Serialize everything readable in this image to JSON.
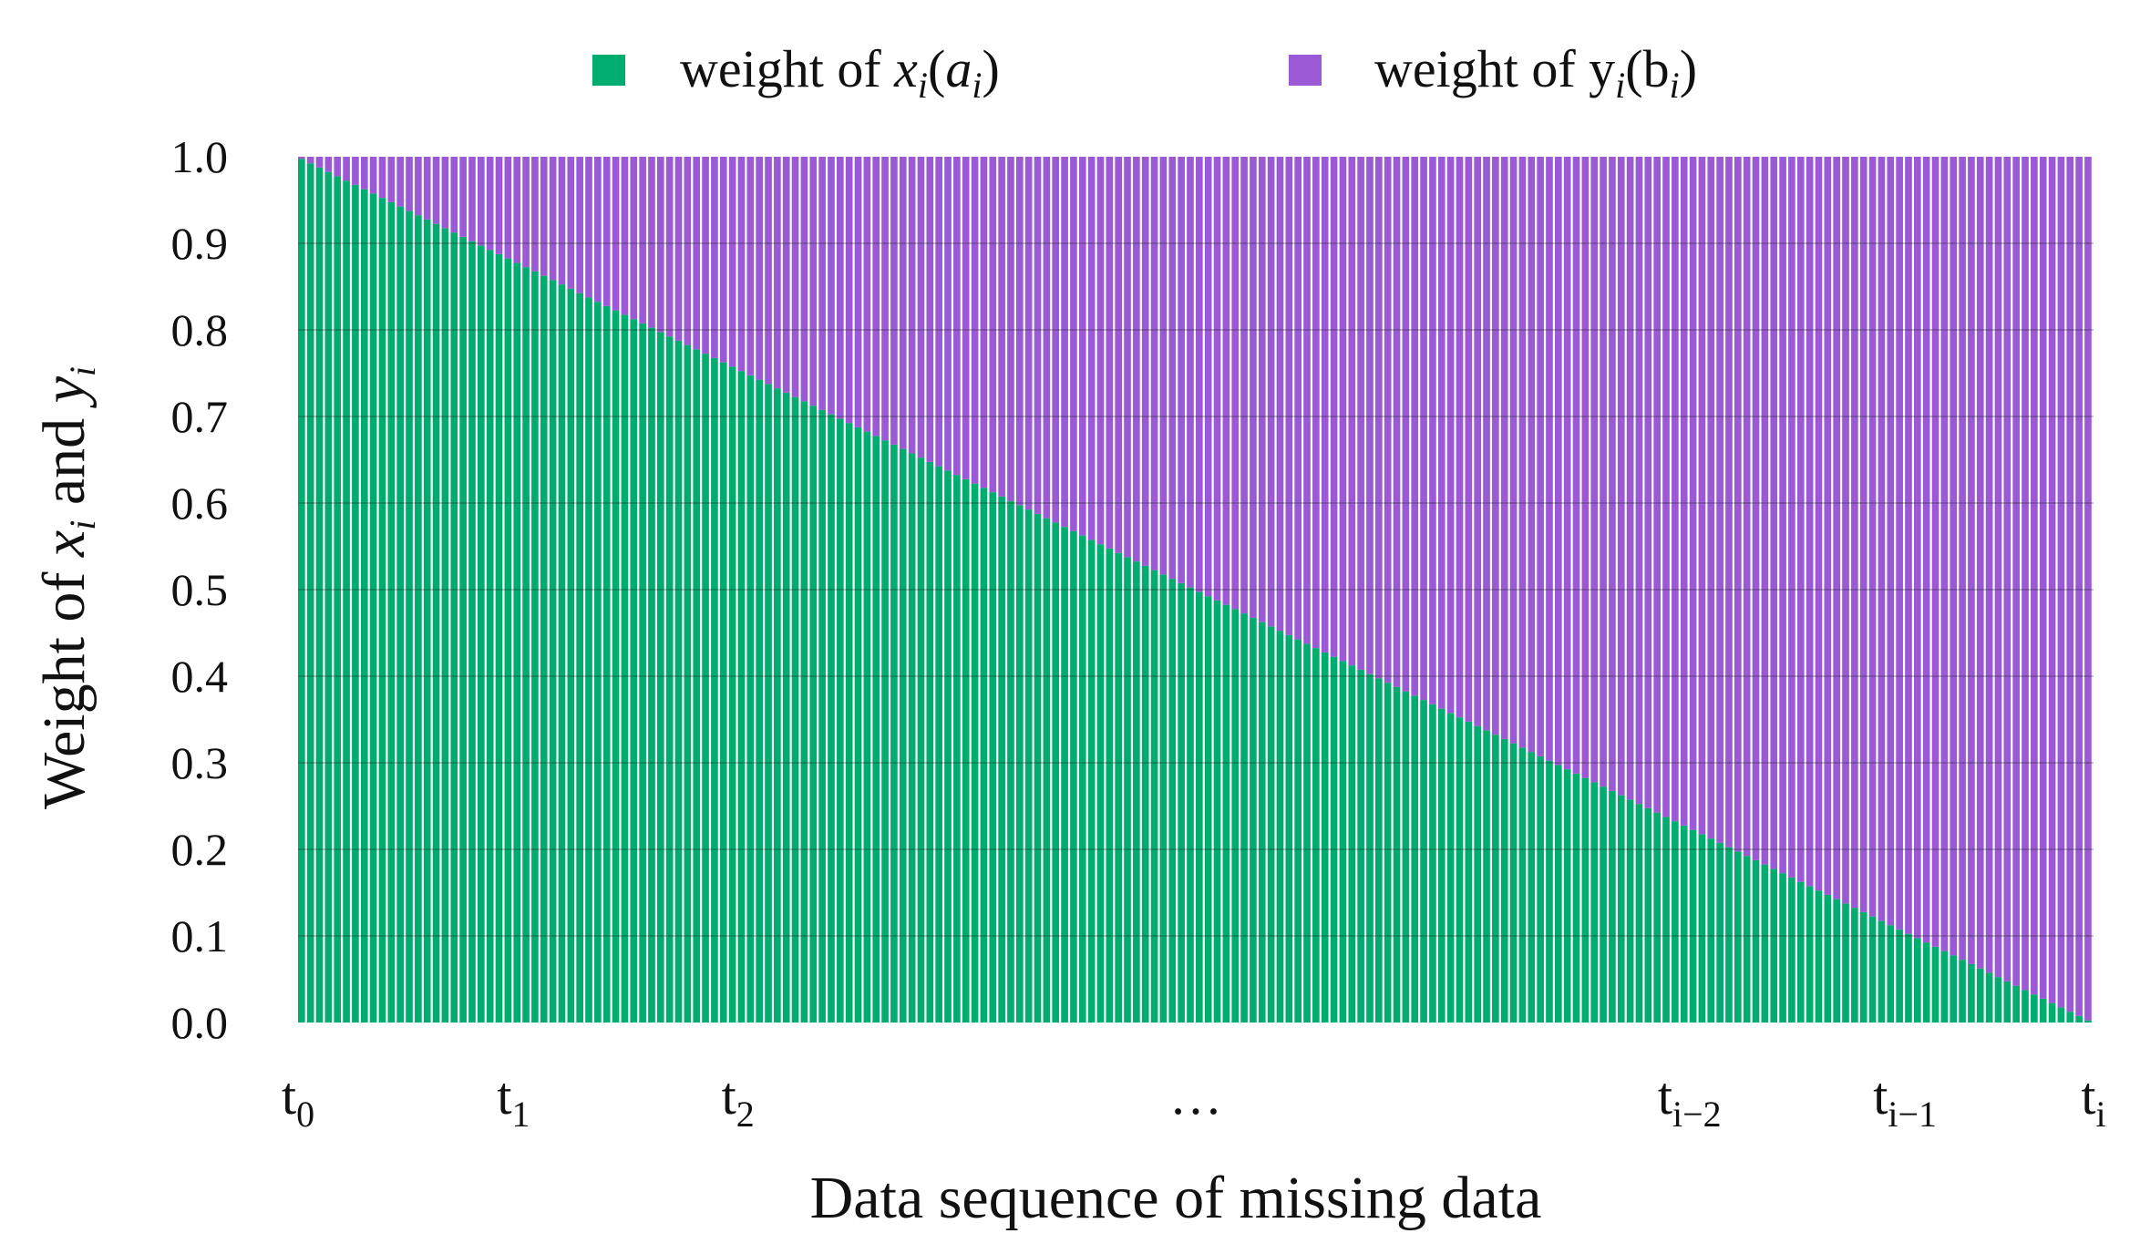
{
  "chart_data": {
    "type": "bar",
    "stacked": true,
    "bar_count": 200,
    "x_range": [
      0,
      1
    ],
    "ylim": [
      0,
      1
    ],
    "yticks": [
      "0.0",
      "0.1",
      "0.2",
      "0.3",
      "0.4",
      "0.5",
      "0.6",
      "0.7",
      "0.8",
      "0.9",
      "1.0"
    ],
    "xticks": [
      {
        "base": "t",
        "sub": "0",
        "pos": 0.0
      },
      {
        "base": "t",
        "sub": "1",
        "pos": 0.12
      },
      {
        "base": "t",
        "sub": "2",
        "pos": 0.245
      },
      {
        "base": "…",
        "sub": "",
        "pos": 0.5
      },
      {
        "base": "t",
        "sub": "i−2",
        "pos": 0.775
      },
      {
        "base": "t",
        "sub": "i−1",
        "pos": 0.895
      },
      {
        "base": "t",
        "sub": "i",
        "pos": 1.0
      }
    ],
    "series": [
      {
        "name": "weight of x_i(a_i)",
        "color": "#00ad6e",
        "start": 1.0,
        "end": 0.0
      },
      {
        "name": "weight of y_i(b_i)",
        "color": "#9b59d6",
        "start": 0.0,
        "end": 1.0
      }
    ],
    "legend": {
      "position": "top",
      "items": [
        {
          "prefix": "weight of ",
          "var": "x",
          "sub": "i",
          "open": "(",
          "coef": "a",
          "coef_sub": "i",
          "close": ")"
        },
        {
          "prefix": "weight of ",
          "var": "y",
          "sub": "i",
          "open": "(",
          "coef": "b",
          "coef_sub": "i",
          "close": ")"
        }
      ]
    },
    "xlabel": "Data sequence of missing data",
    "ylabel": {
      "pre": "Weight of ",
      "v1": "x",
      "s1": "i",
      "mid": " and ",
      "v2": "y",
      "s2": "i"
    },
    "grid": true
  }
}
